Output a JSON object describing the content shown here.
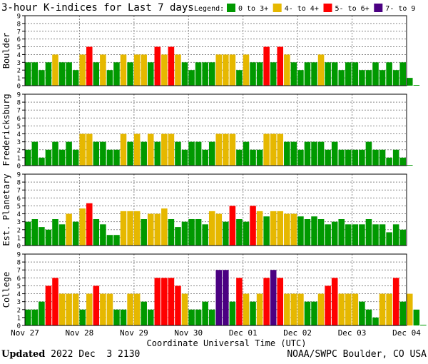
{
  "title": "3-hour K-indices for Last 7 days",
  "legend": {
    "label": "Legend:",
    "items": [
      {
        "text": "0 to 3+",
        "color": "#009900"
      },
      {
        "text": "4- to 4+",
        "color": "#e6b800"
      },
      {
        "text": "5- to 6+",
        "color": "#ff0000"
      },
      {
        "text": "7- to 9",
        "color": "#4b0082"
      }
    ]
  },
  "footer": {
    "updated_label": "Updated",
    "updated_value": " 2022 Dec  3 2130",
    "source": "NOAA/SWPC Boulder, CO USA"
  },
  "chart_data": {
    "type": "bar",
    "xlabel": "Coordinate Universal Time (UTC)",
    "x_tick_labels": [
      "Nov 27",
      "Nov 28",
      "Nov 29",
      "Nov 30",
      "Dec 01",
      "Dec 02",
      "Dec 03",
      "Dec 04"
    ],
    "y_ticks": [
      "0",
      "1",
      "2",
      "3",
      "4",
      "5",
      "6",
      "7",
      "8",
      "9"
    ],
    "ylim": [
      0,
      9
    ],
    "bins_per_day": 8,
    "grid": true,
    "panels": [
      {
        "ylabel": "Boulder",
        "values": [
          3,
          3,
          2,
          3,
          4,
          3,
          3,
          2,
          4,
          5,
          3,
          4,
          2,
          3,
          4,
          3,
          4,
          4,
          3,
          5,
          4,
          5,
          4,
          3,
          2,
          3,
          3,
          3,
          4,
          4,
          4,
          2,
          4,
          3,
          3,
          5,
          3,
          5,
          4,
          3,
          2,
          3,
          3,
          4,
          3,
          3,
          2,
          3,
          3,
          2,
          2,
          3,
          2,
          3,
          2,
          3,
          1,
          0
        ]
      },
      {
        "ylabel": "Fredericksburg",
        "values": [
          2,
          3,
          1,
          2,
          3,
          2,
          3,
          2,
          4,
          4,
          3,
          3,
          2,
          2,
          4,
          3,
          4,
          3,
          4,
          3,
          4,
          4,
          3,
          2,
          3,
          3,
          2,
          3,
          4,
          4,
          4,
          2,
          3,
          2,
          2,
          4,
          4,
          4,
          3,
          3,
          2,
          3,
          3,
          3,
          2,
          3,
          2,
          2,
          2,
          2,
          3,
          2,
          2,
          1,
          2,
          1,
          0
        ]
      },
      {
        "ylabel": "Est. Planetary",
        "values": [
          3,
          3.33,
          2.33,
          2,
          3.33,
          2.67,
          4,
          3,
          4.67,
          5.33,
          3.33,
          2.67,
          1.33,
          1.33,
          4.33,
          4.33,
          4.33,
          3.33,
          4,
          4,
          4.67,
          3.33,
          2.33,
          3,
          3.33,
          3.33,
          2.67,
          4.33,
          4,
          3,
          5,
          3.33,
          3,
          5,
          4.33,
          3.67,
          4.33,
          4.33,
          4,
          4,
          3.67,
          3.33,
          3.67,
          3.33,
          2.67,
          3,
          3.33,
          2.67,
          2.67,
          2.67,
          3.33,
          2.67,
          2.67,
          1.67,
          2.67,
          2
        ]
      },
      {
        "ylabel": "College",
        "values": [
          2,
          2,
          3,
          5,
          6,
          4,
          4,
          4,
          2,
          4,
          5,
          4,
          4,
          2,
          2,
          4,
          4,
          3,
          2,
          6,
          6,
          6,
          5,
          4,
          2,
          2,
          3,
          2,
          7,
          7,
          3,
          6,
          4,
          3,
          4,
          6,
          7,
          6,
          4,
          4,
          4,
          3,
          3,
          4,
          5,
          6,
          4,
          4,
          4,
          3,
          2,
          1,
          4,
          4,
          6,
          3,
          4,
          2,
          0
        ]
      }
    ]
  }
}
